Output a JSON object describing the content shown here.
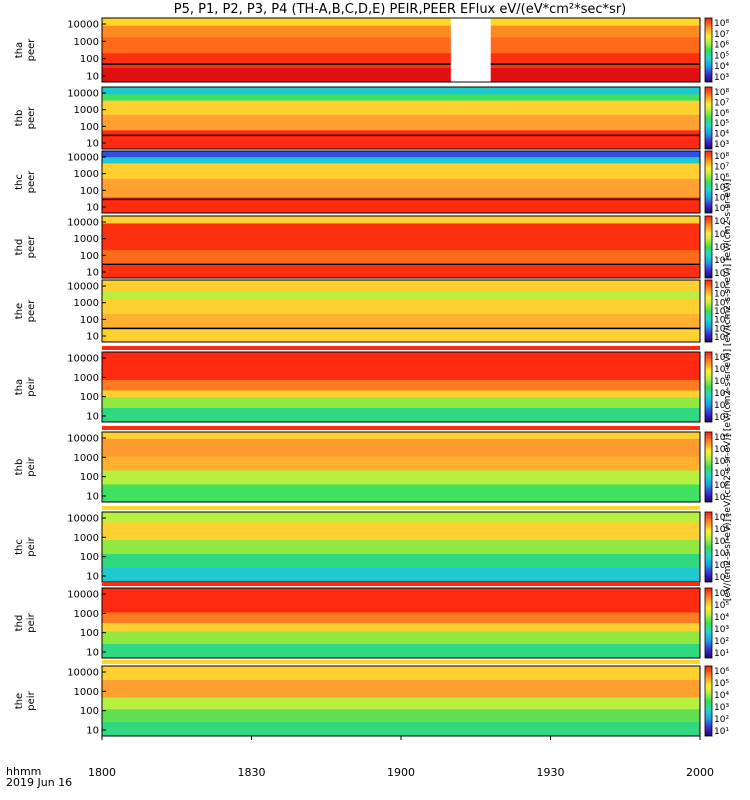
{
  "title": "P5, P1, P2, P3, P4 (TH-A,B,C,D,E) PEIR,PEER EFlux eV/(eV*cm²*sec*sr)",
  "time_axis": {
    "label_line1": "hhmm",
    "label_line2": "2019 Jun 16",
    "ticks": [
      "1800",
      "1830",
      "1900",
      "1930",
      "2000"
    ]
  },
  "colorbar_label": "[eV/(cm2-s-sr-eV)] [eV/(cm2-s-sr-eV)] [eV/(cm2-s-sr-eV)] [eV/(cm2-s-sr-eV)] [eV/(cm2-s-sr-eV)]",
  "chart_data": {
    "type": "heatmap",
    "x_range": [
      "18:00",
      "20:00"
    ],
    "panels": [
      {
        "name": "tha peer",
        "label1": "tha",
        "label2": "peer",
        "yticks": [
          "10000",
          "1000",
          "100",
          "10"
        ],
        "cbar_ticks": [
          "10⁸",
          "10⁷",
          "10⁶",
          "10⁵",
          "10⁴",
          "10³"
        ],
        "data_gap": [
          "19:10",
          "19:18"
        ]
      },
      {
        "name": "thb peer",
        "label1": "thb",
        "label2": "peer",
        "yticks": [
          "10000",
          "1000",
          "100",
          "10"
        ],
        "cbar_ticks": [
          "10⁸",
          "10⁷",
          "10⁶",
          "10⁵",
          "10⁴",
          "10³"
        ]
      },
      {
        "name": "thc peer",
        "label1": "thc",
        "label2": "peer",
        "yticks": [
          "10000",
          "1000",
          "100",
          "10"
        ],
        "cbar_ticks": [
          "10⁸",
          "10⁷",
          "10⁶",
          "10⁵",
          "10⁴",
          "10³"
        ]
      },
      {
        "name": "thd peer",
        "label1": "thd",
        "label2": "peer",
        "yticks": [
          "10000",
          "1000",
          "100",
          "10"
        ],
        "cbar_ticks": [
          "10⁷",
          "10⁶",
          "10⁵",
          "10⁴",
          "10³"
        ]
      },
      {
        "name": "the peer",
        "label1": "the",
        "label2": "peer",
        "yticks": [
          "10000",
          "1000",
          "100",
          "10"
        ],
        "cbar_ticks": [
          "10⁸",
          "10⁷",
          "10⁶",
          "10⁵",
          "10⁴",
          "10³",
          "10²"
        ]
      },
      {
        "name": "tha peir",
        "label1": "tha",
        "label2": "peir",
        "yticks": [
          "10000",
          "1000",
          "100",
          "10"
        ],
        "cbar_ticks": [
          "10⁶",
          "10⁵",
          "10⁴",
          "10³",
          "10²",
          "10¹"
        ]
      },
      {
        "name": "thb peir",
        "label1": "thb",
        "label2": "peir",
        "yticks": [
          "10000",
          "1000",
          "100",
          "10"
        ],
        "cbar_ticks": [
          "10⁶",
          "10⁵",
          "10⁴",
          "10³",
          "10²",
          "10¹"
        ]
      },
      {
        "name": "thc peir",
        "label1": "thc",
        "label2": "peir",
        "yticks": [
          "10000",
          "1000",
          "100",
          "10"
        ],
        "cbar_ticks": [
          "10⁶",
          "10⁵",
          "10⁴",
          "10³",
          "10²",
          "10¹"
        ]
      },
      {
        "name": "thd peir",
        "label1": "thd",
        "label2": "peir",
        "yticks": [
          "10000",
          "1000",
          "100",
          "10"
        ],
        "cbar_ticks": [
          "10⁶",
          "10⁵",
          "10⁴",
          "10³",
          "10²",
          "10¹"
        ]
      },
      {
        "name": "the peir",
        "label1": "the",
        "label2": "peir",
        "yticks": [
          "10000",
          "1000",
          "100",
          "10"
        ],
        "cbar_ticks": [
          "10⁶",
          "10⁵",
          "10⁴",
          "10³",
          "10²",
          "10¹"
        ]
      }
    ]
  }
}
